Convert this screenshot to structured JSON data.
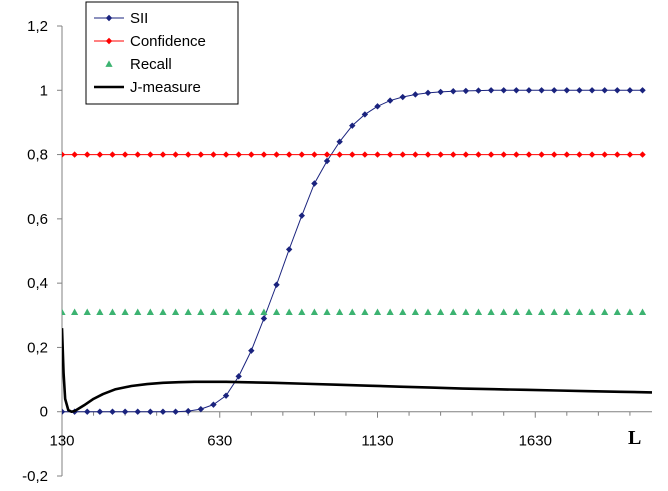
{
  "chart_data": {
    "type": "line",
    "title": "",
    "xlabel": "L",
    "ylabel": "",
    "xlim": [
      130,
      2000
    ],
    "ylim": [
      -0.2,
      1.2
    ],
    "x_ticks": [
      130,
      630,
      1130,
      1630
    ],
    "x_tick_labels": [
      "130",
      "630",
      "1130",
      "1630"
    ],
    "y_ticks": [
      -0.2,
      0,
      0.2,
      0.4,
      0.6,
      0.8,
      1,
      1.2
    ],
    "y_tick_labels": [
      "-0,2",
      "0",
      "0,2",
      "0,4",
      "0,6",
      "0,8",
      "1",
      "1,2"
    ],
    "grid": false,
    "legend_position": "top-left",
    "series": [
      {
        "name": "SII",
        "color": "#1a237e",
        "marker": "diamond",
        "x": [
          130,
          170,
          210,
          250,
          290,
          330,
          370,
          410,
          450,
          490,
          530,
          570,
          610,
          650,
          690,
          730,
          770,
          810,
          850,
          890,
          930,
          970,
          1010,
          1050,
          1090,
          1130,
          1170,
          1210,
          1250,
          1290,
          1330,
          1370,
          1410,
          1450,
          1490,
          1530,
          1570,
          1610,
          1650,
          1690,
          1730,
          1770,
          1810,
          1850,
          1890,
          1930,
          1970
        ],
        "y": [
          0,
          0,
          0,
          0,
          0,
          0,
          0,
          0,
          0,
          0,
          0.002,
          0.008,
          0.022,
          0.05,
          0.11,
          0.19,
          0.29,
          0.395,
          0.505,
          0.61,
          0.71,
          0.78,
          0.84,
          0.89,
          0.925,
          0.95,
          0.968,
          0.979,
          0.987,
          0.992,
          0.995,
          0.997,
          0.998,
          0.999,
          1,
          1,
          1,
          1,
          1,
          1,
          1,
          1,
          1,
          1,
          1,
          1,
          1
        ]
      },
      {
        "name": "Confidence",
        "color": "#ff0000",
        "marker": "diamond",
        "x": [
          130,
          170,
          210,
          250,
          290,
          330,
          370,
          410,
          450,
          490,
          530,
          570,
          610,
          650,
          690,
          730,
          770,
          810,
          850,
          890,
          930,
          970,
          1010,
          1050,
          1090,
          1130,
          1170,
          1210,
          1250,
          1290,
          1330,
          1370,
          1410,
          1450,
          1490,
          1530,
          1570,
          1610,
          1650,
          1690,
          1730,
          1770,
          1810,
          1850,
          1890,
          1930,
          1970
        ],
        "y": [
          0.8,
          0.8,
          0.8,
          0.8,
          0.8,
          0.8,
          0.8,
          0.8,
          0.8,
          0.8,
          0.8,
          0.8,
          0.8,
          0.8,
          0.8,
          0.8,
          0.8,
          0.8,
          0.8,
          0.8,
          0.8,
          0.8,
          0.8,
          0.8,
          0.8,
          0.8,
          0.8,
          0.8,
          0.8,
          0.8,
          0.8,
          0.8,
          0.8,
          0.8,
          0.8,
          0.8,
          0.8,
          0.8,
          0.8,
          0.8,
          0.8,
          0.8,
          0.8,
          0.8,
          0.8,
          0.8,
          0.8
        ]
      },
      {
        "name": "Recall",
        "color": "#3cb371",
        "marker": "triangle",
        "x": [
          130,
          170,
          210,
          250,
          290,
          330,
          370,
          410,
          450,
          490,
          530,
          570,
          610,
          650,
          690,
          730,
          770,
          810,
          850,
          890,
          930,
          970,
          1010,
          1050,
          1090,
          1130,
          1170,
          1210,
          1250,
          1290,
          1330,
          1370,
          1410,
          1450,
          1490,
          1530,
          1570,
          1610,
          1650,
          1690,
          1730,
          1770,
          1810,
          1850,
          1890,
          1930,
          1970
        ],
        "y": [
          0.31,
          0.31,
          0.31,
          0.31,
          0.31,
          0.31,
          0.31,
          0.31,
          0.31,
          0.31,
          0.31,
          0.31,
          0.31,
          0.31,
          0.31,
          0.31,
          0.31,
          0.31,
          0.31,
          0.31,
          0.31,
          0.31,
          0.31,
          0.31,
          0.31,
          0.31,
          0.31,
          0.31,
          0.31,
          0.31,
          0.31,
          0.31,
          0.31,
          0.31,
          0.31,
          0.31,
          0.31,
          0.31,
          0.31,
          0.31,
          0.31,
          0.31,
          0.31,
          0.31,
          0.31,
          0.31,
          0.31
        ]
      },
      {
        "name": "J-measure",
        "color": "#000000",
        "marker": "none",
        "x": [
          130,
          135,
          140,
          150,
          160,
          170,
          180,
          200,
          230,
          260,
          300,
          350,
          400,
          450,
          500,
          550,
          600,
          650,
          700,
          800,
          900,
          1000,
          1100,
          1200,
          1300,
          1400,
          1500,
          1600,
          1700,
          1800,
          1900,
          2000
        ],
        "y": [
          0.26,
          0.12,
          0.04,
          0.005,
          0,
          0.002,
          0.008,
          0.02,
          0.04,
          0.055,
          0.07,
          0.08,
          0.086,
          0.09,
          0.092,
          0.093,
          0.093,
          0.093,
          0.092,
          0.09,
          0.087,
          0.084,
          0.081,
          0.078,
          0.075,
          0.072,
          0.07,
          0.068,
          0.066,
          0.064,
          0.062,
          0.06
        ]
      }
    ]
  }
}
